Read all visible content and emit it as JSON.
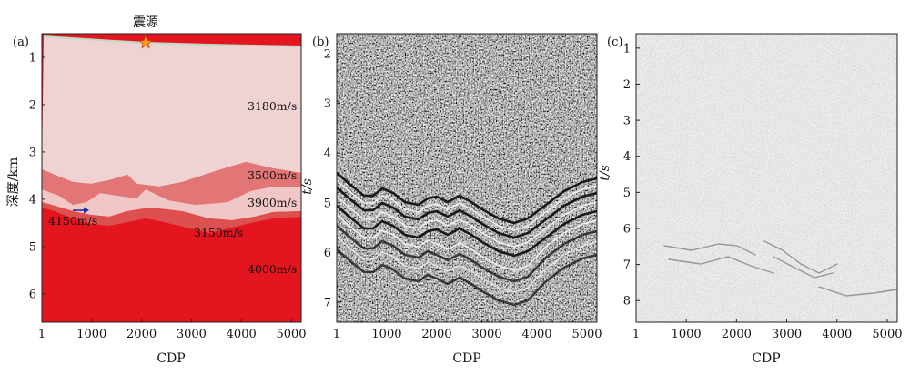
{
  "panels": [
    {
      "letter": "(a)",
      "ylabel": "深度/km",
      "xlabel": "CDP",
      "source_label": "震源",
      "xticks": [
        "1",
        "1000",
        "2000",
        "3000",
        "4000",
        "5000"
      ],
      "yticks": [
        "1",
        "2",
        "3",
        "4",
        "5",
        "6"
      ],
      "velocities": [
        "3180m/s",
        "3500m/s",
        "3900m/s",
        "4150m/s",
        "3150m/s",
        "4000m/s"
      ]
    },
    {
      "letter": "(b)",
      "ylabel": "t/s",
      "xlabel": "CDP",
      "xticks": [
        "1",
        "1000",
        "2000",
        "3000",
        "4000",
        "5000"
      ],
      "yticks": [
        "2",
        "3",
        "4",
        "5",
        "6",
        "7"
      ]
    },
    {
      "letter": "(c)",
      "ylabel": "t/s",
      "xlabel": "CDP",
      "xticks": [
        "1",
        "1000",
        "2000",
        "3000",
        "4000",
        "5000"
      ],
      "yticks": [
        "1",
        "2",
        "3",
        "4",
        "5",
        "6",
        "7",
        "8"
      ]
    }
  ],
  "chart_data": [
    {
      "type": "heatmap",
      "panel": "(a)",
      "xlabel": "CDP",
      "ylabel": "深度/km",
      "xlim": [
        1,
        5200
      ],
      "ylim": [
        6.6,
        0.5
      ],
      "layers": [
        "3180m/s",
        "3500m/s",
        "3900m/s",
        "4150m/s",
        "3150m/s",
        "4000m/s"
      ],
      "colors": {
        "layer1": "#efd3d3",
        "layer2": "#e27676",
        "layer3": "#f1c6c6",
        "layer4": "#dd5050",
        "base": "#e4151f",
        "source": "#f0a21a"
      }
    },
    {
      "type": "heatmap",
      "panel": "(b)",
      "xlabel": "CDP",
      "ylabel": "t/s",
      "xlim": [
        1,
        5200
      ],
      "ylim": [
        7.4,
        1.6
      ]
    },
    {
      "type": "heatmap",
      "panel": "(c)",
      "xlabel": "CDP",
      "ylabel": "t/s",
      "xlim": [
        1,
        5200
      ],
      "ylim": [
        8.6,
        0.6
      ]
    }
  ]
}
